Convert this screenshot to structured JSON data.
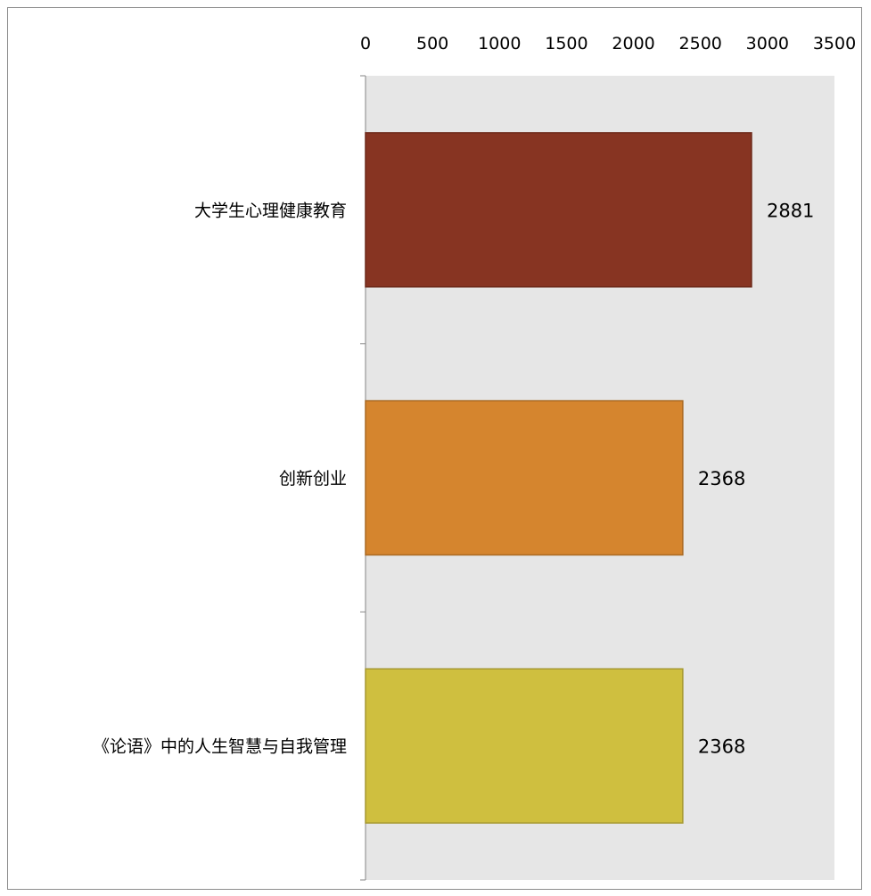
{
  "chart_data": {
    "type": "bar",
    "orientation": "horizontal",
    "title": "",
    "xlabel": "",
    "ylabel": "",
    "xlim": [
      0,
      3500
    ],
    "x_ticks": [
      0,
      500,
      1000,
      1500,
      2000,
      2500,
      3000,
      3500
    ],
    "x_tick_labels": [
      "0",
      "500",
      "1000",
      "1500",
      "2000",
      "2500",
      "3000",
      "3500"
    ],
    "x_axis_position": "top",
    "grid": false,
    "legend": "none",
    "plot_background": "#e6e6e6",
    "categories": [
      "大学生心理健康教育",
      "创新创业",
      "《论语》中的人生智慧与自我管理"
    ],
    "values": [
      2881,
      2368,
      2368
    ],
    "data_labels": [
      "2881",
      "2368",
      "2368"
    ],
    "bar_colors": [
      "#873422",
      "#d5852e",
      "#cfbf3f"
    ],
    "bar_edge_colors": [
      "#6d2a1b",
      "#aa6a24",
      "#a69932"
    ]
  }
}
